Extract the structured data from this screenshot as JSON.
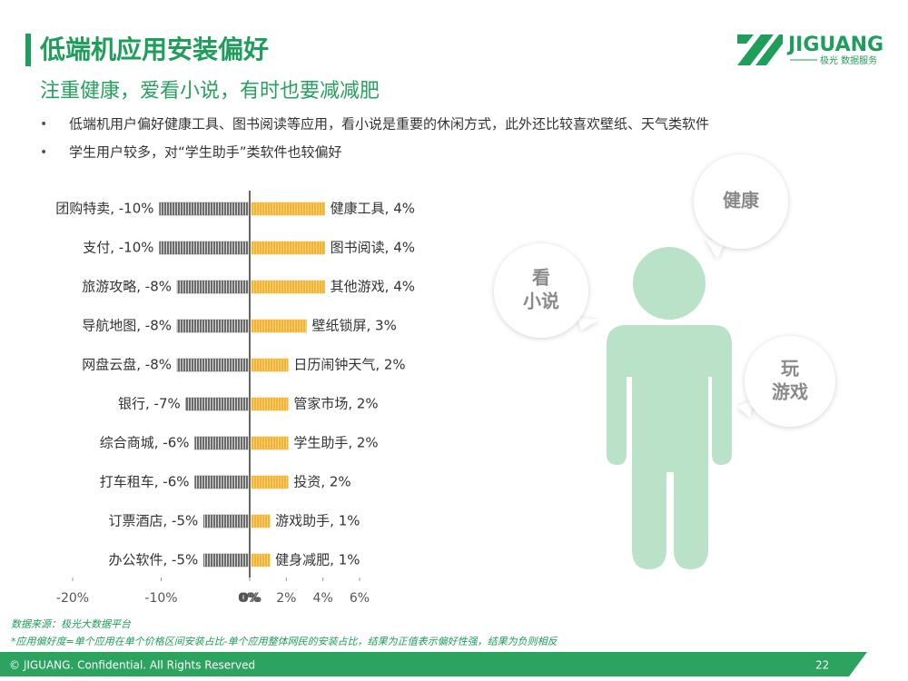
{
  "header": {
    "title": "低端机应用安装偏好",
    "subtitle": "注重健康，爱看小说，有时也要减减肥"
  },
  "logo": {
    "name": "JIGUANG",
    "tagline": "极光 数据服务"
  },
  "bullets": [
    "低端机用户偏好健康工具、图书阅读等应用，看小说是重要的休闲方式，此外还比较喜欢壁纸、天气类软件",
    "学生用户较多，对“学生助手”类软件也较偏好"
  ],
  "chart_data": [
    {
      "type": "bar",
      "orientation": "horizontal",
      "color": "#6b6b6b",
      "values": [
        -10,
        -10,
        -8,
        -8,
        -8,
        -7,
        -6,
        -6,
        -5,
        -5
      ],
      "value_labels": [
        "团购特卖, -10%",
        "支付, -10%",
        "旅游攻略, -8%",
        "导航地图, -8%",
        "网盘云盘, -8%",
        "银行, -7%",
        "综合商城, -6%",
        "打车租车, -6%",
        "订票酒店, -5%",
        "办公软件, -5%"
      ],
      "xlim": [
        -20,
        0
      ],
      "xticks": [
        {
          "value": -20,
          "label": "-20%"
        },
        {
          "value": -10,
          "label": "-10%"
        },
        {
          "value": 0,
          "label": "0%"
        }
      ]
    },
    {
      "type": "bar",
      "orientation": "horizontal",
      "color": "#f5b335",
      "values": [
        4,
        4,
        4,
        3,
        2,
        2,
        2,
        2,
        1,
        1
      ],
      "value_labels": [
        "健康工具, 4%",
        "图书阅读, 4%",
        "其他游戏, 4%",
        "壁纸锁屏, 3%",
        "日历闹钟天气, 2%",
        "管家市场, 2%",
        "学生助手, 2%",
        "投资, 2%",
        "游戏助手, 1%",
        "健身减肥, 1%"
      ],
      "xlim": [
        0,
        6
      ],
      "xticks": [
        {
          "value": 0,
          "label": "0%"
        },
        {
          "value": 2,
          "label": "2%"
        },
        {
          "value": 4,
          "label": "4%"
        },
        {
          "value": 6,
          "label": "6%"
        }
      ]
    }
  ],
  "illustration": {
    "bubbles": [
      [
        "健康"
      ],
      [
        "看",
        "小说"
      ],
      [
        "玩",
        "游戏"
      ]
    ]
  },
  "notes": [
    "数据来源：极光大数据平台",
    "*应用偏好度=单个应用在单个价格区间安装占比-单个应用整体网民的安装占比，结果为正值表示偏好性强，结果为负则相反"
  ],
  "footer": {
    "copyright": "© JIGUANG. Confidential. All Rights Reserved",
    "page": "22"
  }
}
